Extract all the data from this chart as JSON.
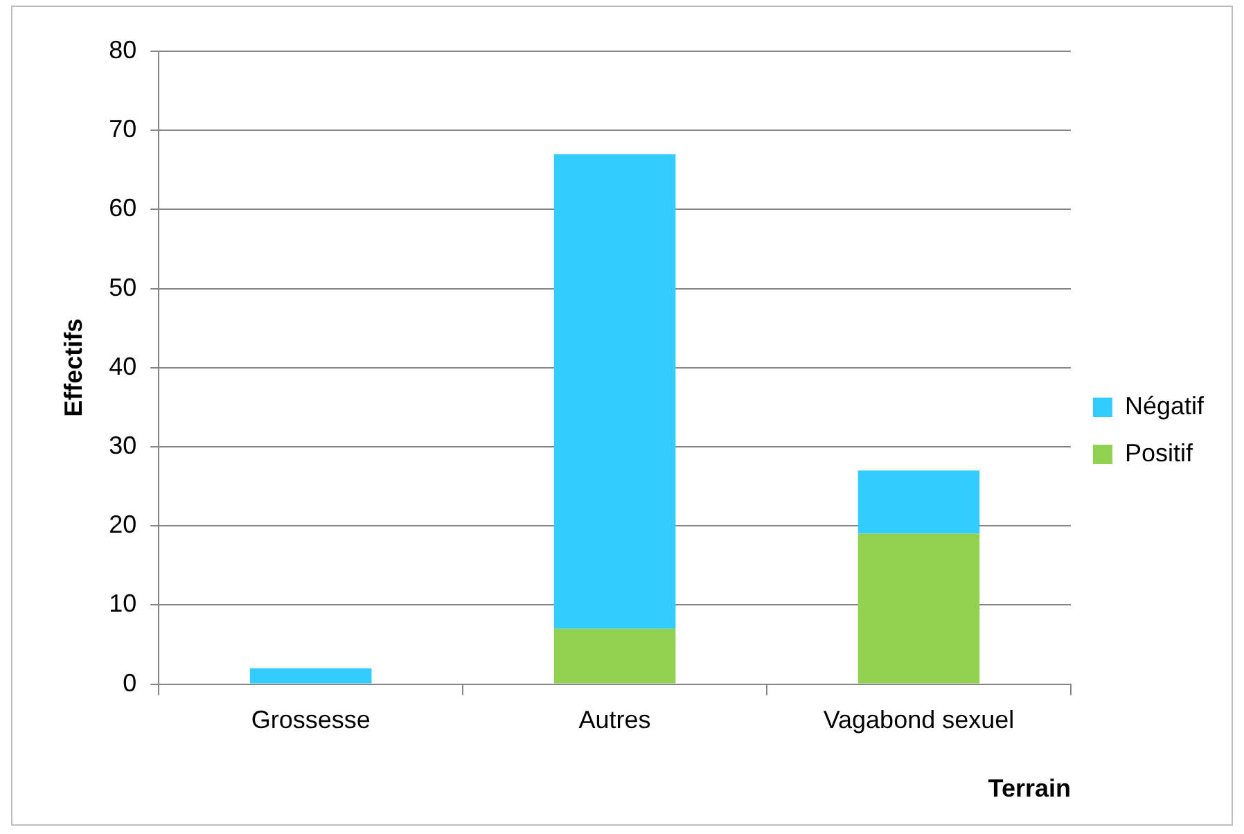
{
  "chart_data": {
    "type": "bar",
    "xlabel": "Terrain",
    "ylabel": "Effectifs",
    "categories": [
      "Grossesse",
      "Autres",
      "Vagabond sexuel"
    ],
    "series": [
      {
        "name": "Positif",
        "color": "#92d050",
        "values": [
          0,
          7,
          19
        ]
      },
      {
        "name": "Négatif",
        "color": "#33ccff",
        "values": [
          2,
          60,
          8
        ]
      }
    ],
    "stacked": true,
    "ylim": [
      0,
      80
    ],
    "yticks": [
      0,
      10,
      20,
      30,
      40,
      50,
      60,
      70,
      80
    ],
    "grid": "y",
    "legend": "right"
  }
}
